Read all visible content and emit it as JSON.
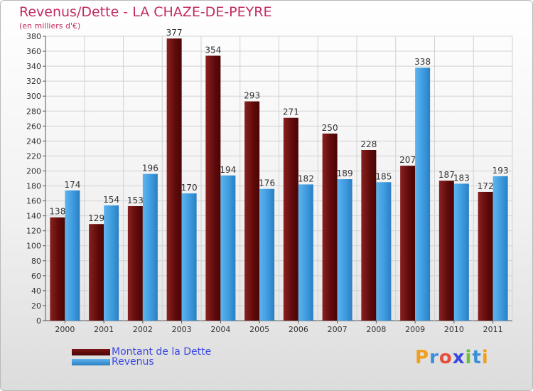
{
  "header": {
    "title": "Revenus/Dette - LA CHAZE-DE-PEYRE",
    "subtitle": "(en milliers d'€)"
  },
  "colors": {
    "dette": "#6b0d0d",
    "revenus": "#3c9ce0",
    "title": "#c42a62",
    "legend_text": "#3a48e0"
  },
  "chart_data": {
    "type": "bar",
    "title": "Revenus/Dette - LA CHAZE-DE-PEYRE",
    "subtitle": "(en milliers d'€)",
    "categories": [
      "2000",
      "2001",
      "2002",
      "2003",
      "2004",
      "2005",
      "2006",
      "2007",
      "2008",
      "2009",
      "2010",
      "2011"
    ],
    "series": [
      {
        "name": "Montant de la Dette",
        "values": [
          138,
          129,
          153,
          377,
          354,
          293,
          271,
          250,
          228,
          207,
          187,
          172
        ]
      },
      {
        "name": "Revenus",
        "values": [
          174,
          154,
          196,
          170,
          194,
          176,
          182,
          189,
          185,
          338,
          183,
          193
        ]
      }
    ],
    "ylim": [
      0,
      380
    ],
    "ytick_step": 20,
    "grid": true,
    "legend_position": "bottom-left"
  },
  "logo": {
    "letters": [
      "P",
      "r",
      "o",
      "x",
      "i",
      "t",
      "i"
    ],
    "colors": [
      "#f0a020",
      "#3c8fd8",
      "#e84c3d",
      "#3a48e0",
      "#6cbf3a",
      "#3c8fd8",
      "#f0a020"
    ]
  }
}
